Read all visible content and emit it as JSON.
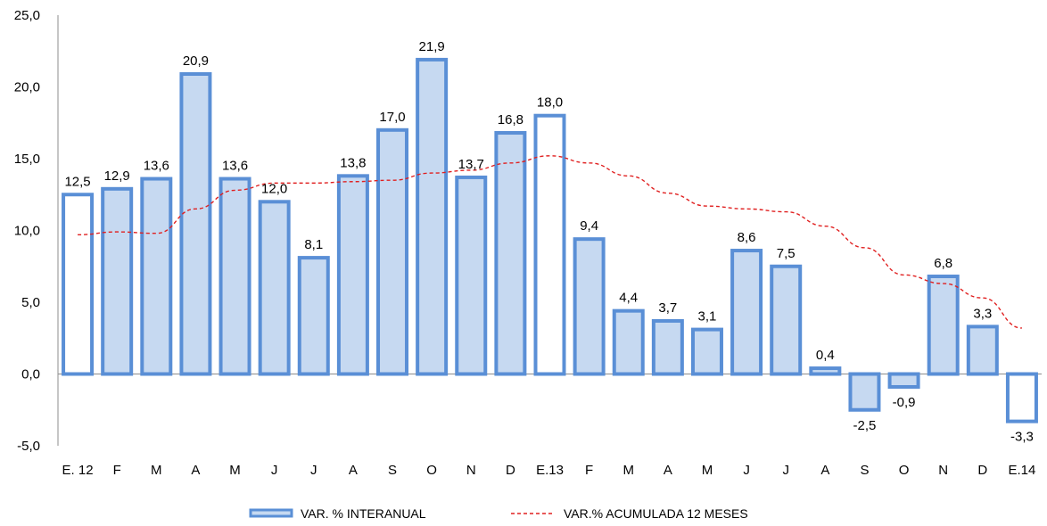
{
  "chart_data": {
    "type": "bar",
    "categories": [
      "E. 12",
      "F",
      "M",
      "A",
      "M",
      "J",
      "J",
      "A",
      "S",
      "O",
      "N",
      "D",
      "E.13",
      "F",
      "M",
      "A",
      "M",
      "J",
      "J",
      "A",
      "S",
      "O",
      "N",
      "D",
      "E.14"
    ],
    "series": [
      {
        "name": "VAR. % INTERANUAL",
        "type": "bar",
        "values": [
          12.5,
          12.9,
          13.6,
          20.9,
          13.6,
          12.0,
          8.1,
          13.8,
          17.0,
          21.9,
          13.7,
          16.8,
          18.0,
          9.4,
          4.4,
          3.7,
          3.1,
          8.6,
          7.5,
          0.4,
          -2.5,
          -0.9,
          6.8,
          3.3,
          -3.3
        ],
        "labels": [
          "12,5",
          "12,9",
          "13,6",
          "20,9",
          "13,6",
          "12,0",
          "8,1",
          "13,8",
          "17,0",
          "21,9",
          "13,7",
          "16,8",
          "18,0",
          "9,4",
          "4,4",
          "3,7",
          "3,1",
          "8,6",
          "7,5",
          "0,4",
          "-2,5",
          "-0,9",
          "6,8",
          "3,3",
          "-3,3"
        ],
        "highlight_white": [
          0,
          12,
          24
        ]
      },
      {
        "name": "VAR.% ACUMULADA 12 MESES",
        "type": "line",
        "style": "dashed",
        "values": [
          9.7,
          9.9,
          9.8,
          11.5,
          12.8,
          13.3,
          13.3,
          13.4,
          13.5,
          14.0,
          14.2,
          14.7,
          15.2,
          14.7,
          13.8,
          12.6,
          11.7,
          11.5,
          11.3,
          10.3,
          8.8,
          6.9,
          6.3,
          5.3,
          3.2
        ]
      }
    ],
    "yticks": [
      "25,0",
      "20,0",
      "15,0",
      "10,0",
      "5,0",
      "0,0",
      "-5,0"
    ],
    "ylim": [
      -5,
      25
    ],
    "grid": false,
    "legend_position": "bottom",
    "colors": {
      "bar_fill": "#c6d9f1",
      "bar_stroke": "#5a8fd6",
      "bar_highlight_fill": "#ffffff",
      "line": "#e02020",
      "axis": "#8c8c8c"
    }
  }
}
